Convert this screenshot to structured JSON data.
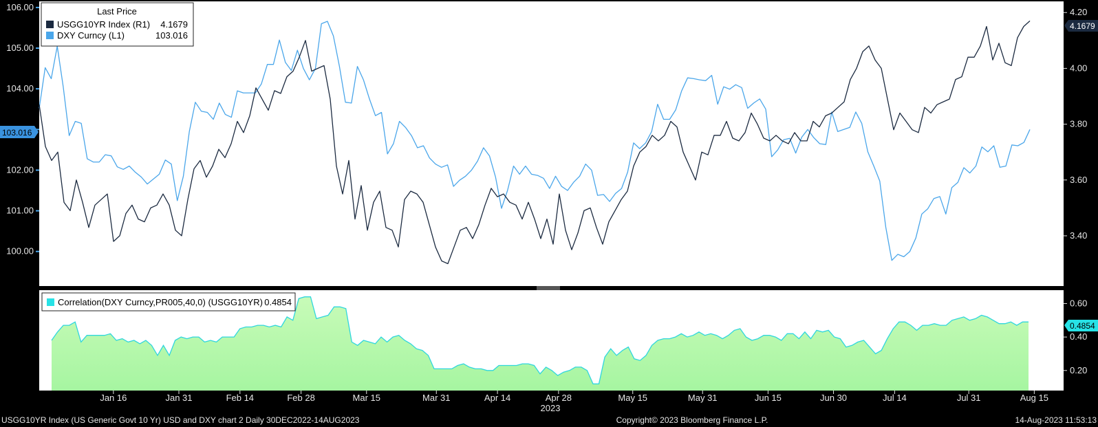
{
  "colors": {
    "background": "#000000",
    "panel": "#ffffff",
    "usgg": "#1b2a40",
    "dxy": "#4aa6ea",
    "corr_line": "#2fd6de",
    "corr_fill": "#a6f5a1",
    "dxy_tag": "#3a93e0",
    "corr_tag": "#27e2e6"
  },
  "legend_top": {
    "title": "Last Price",
    "items": [
      {
        "name": "USGG10YR Index  (R1)",
        "value": "4.1679"
      },
      {
        "name": "DXY Curncy  (L1)",
        "value": "103.016"
      }
    ]
  },
  "legend_bottom": {
    "name": "Correlation(DXY Curncy,PR005,40,0) (USGG10YR)",
    "value": "0.4854"
  },
  "tags": {
    "dxy_last": "103.016",
    "usgg_last": "4.1679",
    "corr_last": "0.4854"
  },
  "x_axis": {
    "labels": [
      "Jan 16",
      "Jan 31",
      "Feb 14",
      "Feb 28",
      "Mar 15",
      "Mar 31",
      "Apr 14",
      "Apr 28",
      "May 15",
      "May 31",
      "Jun 15",
      "Jun 30",
      "Jul 14",
      "Jul 31",
      "Aug 15"
    ],
    "year": "2023"
  },
  "footer": {
    "left": "USGG10YR Index (US Generic Govt 10 Yr) USD and DXY chart 2  Daily 30DEC2022-14AUG2023",
    "center": "Copyright© 2023 Bloomberg Finance L.P.",
    "right": "14-Aug-2023 11:53:13"
  },
  "chart_data": [
    {
      "type": "line",
      "x_range": [
        "2022-12-30",
        "2023-08-14"
      ],
      "left_axis": {
        "ticks": [
          "106.00",
          "105.00",
          "104.00",
          "103.00",
          "102.00",
          "101.00",
          "100.00"
        ],
        "ylim": [
          99.15,
          106.15
        ]
      },
      "right_axis": {
        "ticks": [
          "4.20",
          "4.00",
          "3.80",
          "3.60",
          "3.40"
        ],
        "ylim": [
          3.22,
          4.24
        ]
      },
      "series": [
        {
          "name": "DXY Curncy",
          "axis": "left",
          "values": [
            103.52,
            104.52,
            104.25,
            105.05,
            104.05,
            102.85,
            103.2,
            103.15,
            102.28,
            102.2,
            102.2,
            102.38,
            102.35,
            102.08,
            102.02,
            102.1,
            101.95,
            101.83,
            101.66,
            101.78,
            101.9,
            102.25,
            102.15,
            101.25,
            101.85,
            102.95,
            103.67,
            103.45,
            103.42,
            103.25,
            103.65,
            103.37,
            103.3,
            103.95,
            103.9,
            103.9,
            103.9,
            104.12,
            104.6,
            104.6,
            105.2,
            104.65,
            104.45,
            104.95,
            104.5,
            104.22,
            104.5,
            105.6,
            105.66,
            105.3,
            104.55,
            103.67,
            103.65,
            104.55,
            104.22,
            103.75,
            103.34,
            103.42,
            102.4,
            102.65,
            103.2,
            103.05,
            102.85,
            102.55,
            102.6,
            102.3,
            102.15,
            102.07,
            102.13,
            101.6,
            101.75,
            101.85,
            102.0,
            102.22,
            102.55,
            102.35,
            101.83,
            101.06,
            101.5,
            102.1,
            101.9,
            102.1,
            101.9,
            101.87,
            101.8,
            101.55,
            101.85,
            101.6,
            101.5,
            101.7,
            101.85,
            102.15,
            102.0,
            101.38,
            101.4,
            101.23,
            101.43,
            101.55,
            101.95,
            102.67,
            102.53,
            102.67,
            102.95,
            103.62,
            103.25,
            103.25,
            103.48,
            103.95,
            104.27,
            104.25,
            104.22,
            104.2,
            104.33,
            103.62,
            104.05,
            103.99,
            104.1,
            104.03,
            103.52,
            103.65,
            103.75,
            103.5,
            102.33,
            102.5,
            102.75,
            102.78,
            102.42,
            102.81,
            103.0,
            102.8,
            102.65,
            102.63,
            103.43,
            102.95,
            103.0,
            103.05,
            103.43,
            103.15,
            102.45,
            102.1,
            101.73,
            100.6,
            99.78,
            99.93,
            99.87,
            100.0,
            100.33,
            100.92,
            101.05,
            101.3,
            101.35,
            100.92,
            101.57,
            101.7,
            102.06,
            101.93,
            102.1,
            102.57,
            102.45,
            102.6,
            102.07,
            102.1,
            102.62,
            102.6,
            102.68,
            103.0
          ]
        },
        {
          "name": "USGG10YR Index",
          "axis": "right",
          "values": [
            3.87,
            3.72,
            3.67,
            3.7,
            3.52,
            3.49,
            3.6,
            3.52,
            3.43,
            3.51,
            3.53,
            3.55,
            3.38,
            3.4,
            3.48,
            3.51,
            3.46,
            3.45,
            3.5,
            3.51,
            3.55,
            3.51,
            3.42,
            3.4,
            3.53,
            3.64,
            3.67,
            3.61,
            3.65,
            3.71,
            3.68,
            3.73,
            3.81,
            3.77,
            3.83,
            3.93,
            3.89,
            3.85,
            3.92,
            3.91,
            3.97,
            3.99,
            4.04,
            4.1,
            3.99,
            4.0,
            4.01,
            3.89,
            3.65,
            3.55,
            3.67,
            3.46,
            3.58,
            3.42,
            3.52,
            3.56,
            3.43,
            3.42,
            3.36,
            3.53,
            3.56,
            3.55,
            3.52,
            3.44,
            3.36,
            3.31,
            3.3,
            3.36,
            3.42,
            3.43,
            3.39,
            3.44,
            3.51,
            3.57,
            3.54,
            3.55,
            3.52,
            3.51,
            3.46,
            3.52,
            3.46,
            3.39,
            3.46,
            3.37,
            3.55,
            3.42,
            3.35,
            3.41,
            3.49,
            3.5,
            3.43,
            3.37,
            3.45,
            3.49,
            3.53,
            3.56,
            3.65,
            3.7,
            3.72,
            3.76,
            3.74,
            3.76,
            3.81,
            3.79,
            3.7,
            3.65,
            3.6,
            3.7,
            3.69,
            3.76,
            3.76,
            3.81,
            3.75,
            3.74,
            3.77,
            3.84,
            3.8,
            3.75,
            3.74,
            3.76,
            3.74,
            3.73,
            3.77,
            3.74,
            3.74,
            3.81,
            3.79,
            3.83,
            3.84,
            3.86,
            3.88,
            3.96,
            4.0,
            4.06,
            4.08,
            4.03,
            4.0,
            3.89,
            3.78,
            3.84,
            3.81,
            3.78,
            3.77,
            3.86,
            3.84,
            3.87,
            3.88,
            3.89,
            3.96,
            3.97,
            4.04,
            4.04,
            4.08,
            4.15,
            4.03,
            4.09,
            4.02,
            4.01,
            4.11,
            4.15,
            4.17
          ]
        }
      ]
    },
    {
      "type": "area",
      "x_range": [
        "2022-12-30",
        "2023-08-14"
      ],
      "y_axis": {
        "ticks": [
          "0.60",
          "0.40",
          "0.20"
        ],
        "ylim": [
          0.08,
          0.68
        ]
      },
      "series": [
        {
          "name": "Correlation(DXY Curncy,PR005,40,0) (USGG10YR)",
          "values": [
            0.38,
            0.43,
            0.47,
            0.47,
            0.49,
            0.37,
            0.41,
            0.41,
            0.41,
            0.41,
            0.42,
            0.38,
            0.39,
            0.37,
            0.38,
            0.36,
            0.38,
            0.35,
            0.29,
            0.35,
            0.29,
            0.38,
            0.4,
            0.39,
            0.4,
            0.4,
            0.37,
            0.38,
            0.37,
            0.4,
            0.4,
            0.4,
            0.45,
            0.46,
            0.46,
            0.47,
            0.47,
            0.46,
            0.47,
            0.46,
            0.52,
            0.5,
            0.63,
            0.64,
            0.64,
            0.51,
            0.52,
            0.53,
            0.58,
            0.58,
            0.57,
            0.37,
            0.35,
            0.38,
            0.37,
            0.36,
            0.4,
            0.37,
            0.4,
            0.41,
            0.38,
            0.36,
            0.33,
            0.32,
            0.29,
            0.21,
            0.21,
            0.21,
            0.21,
            0.23,
            0.24,
            0.22,
            0.21,
            0.21,
            0.2,
            0.2,
            0.23,
            0.23,
            0.23,
            0.23,
            0.24,
            0.24,
            0.23,
            0.18,
            0.22,
            0.2,
            0.17,
            0.19,
            0.2,
            0.22,
            0.22,
            0.2,
            0.12,
            0.12,
            0.28,
            0.33,
            0.29,
            0.32,
            0.34,
            0.27,
            0.26,
            0.29,
            0.35,
            0.38,
            0.39,
            0.39,
            0.4,
            0.42,
            0.4,
            0.41,
            0.43,
            0.41,
            0.42,
            0.41,
            0.39,
            0.41,
            0.44,
            0.45,
            0.4,
            0.38,
            0.39,
            0.41,
            0.41,
            0.4,
            0.38,
            0.42,
            0.42,
            0.39,
            0.43,
            0.39,
            0.44,
            0.43,
            0.44,
            0.4,
            0.39,
            0.34,
            0.35,
            0.37,
            0.38,
            0.34,
            0.3,
            0.32,
            0.39,
            0.45,
            0.49,
            0.49,
            0.47,
            0.44,
            0.47,
            0.47,
            0.48,
            0.47,
            0.47,
            0.5,
            0.51,
            0.52,
            0.5,
            0.51,
            0.53,
            0.52,
            0.5,
            0.48,
            0.48,
            0.49,
            0.47,
            0.49,
            0.49
          ]
        }
      ]
    }
  ]
}
